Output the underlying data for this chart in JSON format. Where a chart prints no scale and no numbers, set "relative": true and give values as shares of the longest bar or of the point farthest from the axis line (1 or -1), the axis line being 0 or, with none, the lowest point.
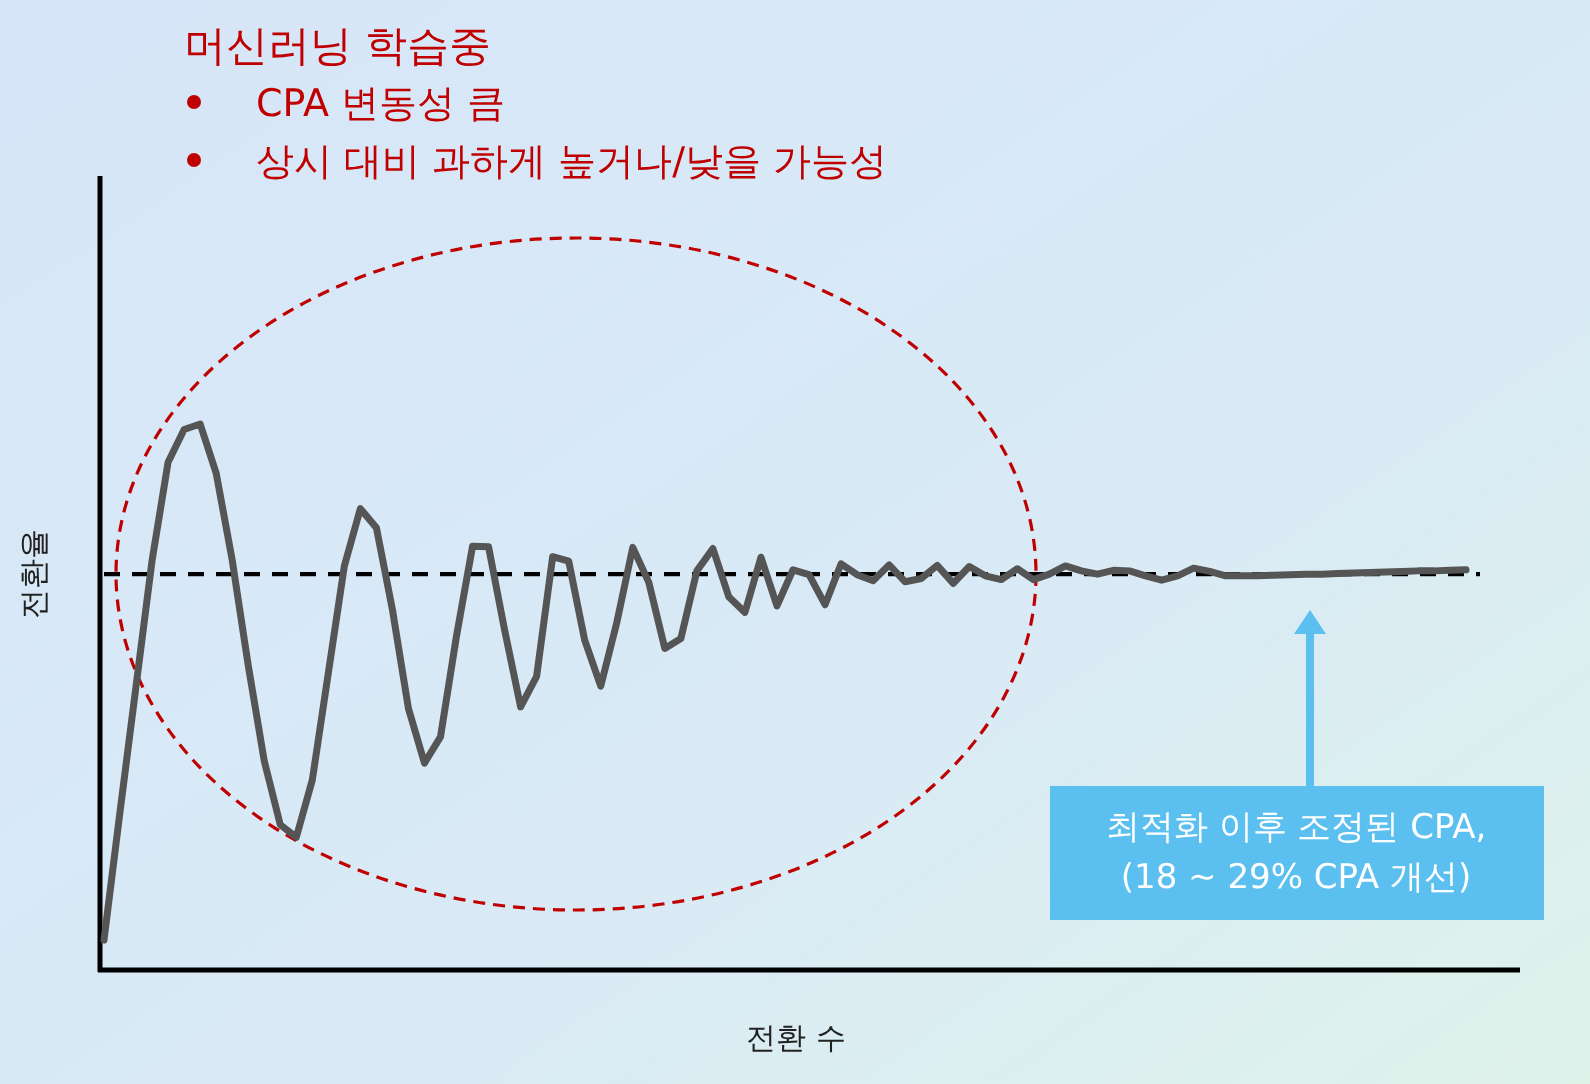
{
  "chart_data": {
    "type": "line",
    "relative": true,
    "title": "머신러닝 학습중",
    "xlabel": "전환 수",
    "ylabel": "전환율",
    "categories": [
      null,
      null,
      null,
      null,
      null,
      null,
      null,
      null,
      null,
      null,
      null,
      null,
      null,
      null,
      null,
      null,
      null,
      null,
      null,
      null,
      null,
      null,
      null,
      null,
      null,
      null,
      null,
      null,
      null,
      null,
      null,
      null,
      null,
      null,
      null,
      null,
      null,
      null,
      null,
      null,
      null,
      null,
      null,
      null,
      null,
      null,
      null,
      null,
      null,
      null,
      null,
      null,
      null,
      null,
      null,
      null,
      null,
      null,
      null,
      null,
      null,
      null,
      null,
      null,
      null,
      null,
      null,
      null,
      null,
      null,
      null,
      null,
      null,
      null,
      null,
      null,
      null,
      null,
      null,
      null,
      null,
      null,
      null,
      null,
      null,
      null
    ],
    "series": [
      {
        "color": "#555555",
        "values": [
          0.055,
          0.29,
          0.52,
          0.75,
          0.93,
          0.99,
          1.0,
          0.91,
          0.751,
          0.558,
          0.383,
          0.266,
          0.243,
          0.348,
          0.544,
          0.74,
          0.845,
          0.81,
          0.66,
          0.479,
          0.379,
          0.427,
          0.612,
          0.776,
          0.775,
          0.623,
          0.482,
          0.538,
          0.757,
          0.749,
          0.604,
          0.52,
          0.636,
          0.774,
          0.71,
          0.589,
          0.607,
          0.731,
          0.772,
          0.683,
          0.655,
          0.756,
          0.667,
          0.733,
          0.724,
          0.669,
          0.744,
          0.724,
          0.713,
          0.742,
          0.711,
          0.717,
          0.741,
          0.708,
          0.739,
          0.722,
          0.715,
          0.735,
          0.715,
          0.725,
          0.74,
          0.731,
          0.725,
          0.732,
          0.731,
          0.722,
          0.714,
          0.722,
          0.736,
          0.73,
          0.722,
          0.722,
          0.722,
          0.723,
          0.724,
          0.725,
          0.725,
          0.726,
          0.727,
          0.728,
          0.729,
          0.73,
          0.731,
          0.731,
          0.732,
          0.733
        ]
      }
    ],
    "ref_lines": [
      {
        "axis": "y",
        "value": 0.725,
        "color": "#000000",
        "line_style": "dashed"
      }
    ],
    "annotations": [
      "CPA 변동성 큼",
      "상시 대비 과하게 높거나/낮을 가능성",
      "최적화 이후 조정된 CPA,\n(18 ~ 29% CPA 개선)"
    ]
  }
}
